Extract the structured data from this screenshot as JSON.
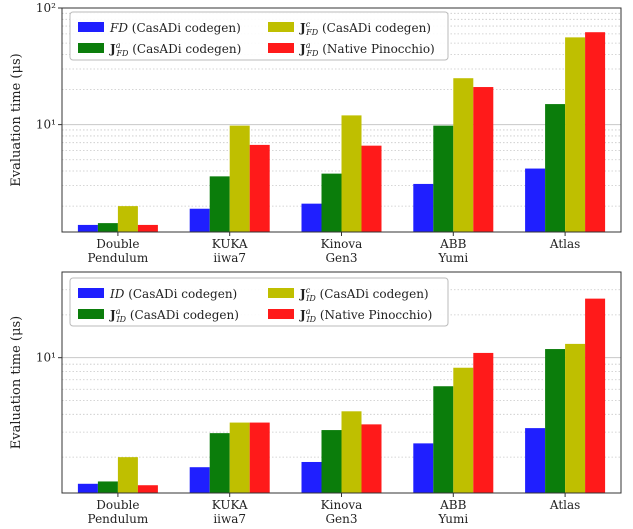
{
  "colors": {
    "s1": "#1f1fff",
    "s2": "#0b7d0b",
    "s3": "#bfbf00",
    "s4": "#ff1a1a",
    "grid": "#c8c8c8",
    "axis": "#333333"
  },
  "chart_data": [
    {
      "type": "bar",
      "yscale": "log",
      "ylabel": "Evaluation time (μs)",
      "ylim": [
        1.2,
        100
      ],
      "yticks": [
        {
          "value": 10,
          "label": "10¹"
        },
        {
          "value": 100,
          "label": "10²"
        }
      ],
      "categories": [
        {
          "line1": "Double",
          "line2": "Pendulum"
        },
        {
          "line1": "KUKA",
          "line2": "iiwa7"
        },
        {
          "line1": "Kinova",
          "line2": "Gen3"
        },
        {
          "line1": "ABB",
          "line2": "Yumi"
        },
        {
          "line1": "Atlas",
          "line2": ""
        }
      ],
      "legend_position": "top-left",
      "series": [
        {
          "sym": "FD",
          "sub": "",
          "sup": "",
          "bold": false,
          "rest": " (CasADi codegen)",
          "color": "#1f1fff",
          "values": [
            1.38,
            1.9,
            2.1,
            3.1,
            4.2
          ]
        },
        {
          "sym": "J",
          "sub": "FD",
          "sup": "a",
          "bold": true,
          "rest": " (CasADi codegen)",
          "color": "#0b7d0b",
          "values": [
            1.43,
            3.6,
            3.8,
            9.8,
            15.0
          ]
        },
        {
          "sym": "J",
          "sub": "FD",
          "sup": "c",
          "bold": true,
          "rest": " (CasADi codegen)",
          "color": "#bfbf00",
          "values": [
            2.0,
            9.8,
            12.0,
            25.0,
            56.0
          ]
        },
        {
          "sym": "J",
          "sub": "FD",
          "sup": "a",
          "bold": true,
          "rest": " (Native Pinocchio)",
          "color": "#ff1a1a",
          "values": [
            1.38,
            6.7,
            6.6,
            21.0,
            62.0
          ]
        }
      ]
    },
    {
      "type": "bar",
      "yscale": "log",
      "ylabel": "Evaluation time (μs)",
      "ylim": [
        1.12,
        40
      ],
      "yticks": [
        {
          "value": 10,
          "label": "10¹"
        }
      ],
      "categories": [
        {
          "line1": "Double",
          "line2": "Pendulum"
        },
        {
          "line1": "KUKA",
          "line2": "iiwa7"
        },
        {
          "line1": "Kinova",
          "line2": "Gen3"
        },
        {
          "line1": "ABB",
          "line2": "Yumi"
        },
        {
          "line1": "Atlas",
          "line2": ""
        }
      ],
      "legend_position": "top-left",
      "series": [
        {
          "sym": "ID",
          "sub": "",
          "sup": "",
          "bold": false,
          "rest": " (CasADi codegen)",
          "color": "#1f1fff",
          "values": [
            1.3,
            1.7,
            1.85,
            2.5,
            3.2
          ]
        },
        {
          "sym": "J",
          "sub": "ID",
          "sup": "a",
          "bold": true,
          "rest": " (CasADi codegen)",
          "color": "#0b7d0b",
          "values": [
            1.35,
            2.95,
            3.1,
            6.3,
            11.5
          ]
        },
        {
          "sym": "J",
          "sub": "ID",
          "sup": "c",
          "bold": true,
          "rest": " (CasADi codegen)",
          "color": "#bfbf00",
          "values": [
            2.0,
            3.5,
            4.2,
            8.5,
            12.5
          ]
        },
        {
          "sym": "J",
          "sub": "ID",
          "sup": "a",
          "bold": true,
          "rest": " (Native Pinocchio)",
          "color": "#ff1a1a",
          "values": [
            1.27,
            3.5,
            3.4,
            10.8,
            26.0
          ]
        }
      ]
    }
  ]
}
